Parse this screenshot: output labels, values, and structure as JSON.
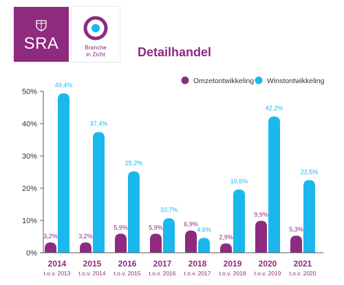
{
  "logo_sra": {
    "text": "SRA"
  },
  "logo_branche": {
    "line1": "Branche",
    "line2": "in Zicht"
  },
  "title": "Detailhandel",
  "colors": {
    "omzet": "#8e2b7f",
    "winst": "#1ab8ec",
    "brand": "#8e2b7f"
  },
  "chart_data": {
    "type": "bar",
    "title": "Detailhandel",
    "categories": [
      "2014",
      "2015",
      "2016",
      "2017",
      "2018",
      "2019",
      "2020",
      "2021"
    ],
    "subcategories": [
      "t.o.v. 2013",
      "t.o.v. 2014",
      "t.o.v. 2015",
      "t.o.v. 2016",
      "t.o.v. 2017",
      "t.o.v. 2018",
      "t.o.v. 2019",
      "t.o.v. 2020"
    ],
    "series": [
      {
        "name": "Omzetontwikkeling",
        "values": [
          3.2,
          3.2,
          5.9,
          5.9,
          6.9,
          2.9,
          9.9,
          5.3
        ],
        "labels": [
          "3,2%",
          "3,2%",
          "5,9%",
          "5,9%",
          "6,9%",
          "2,9%",
          "9,9%",
          "5,3%"
        ]
      },
      {
        "name": "Winstontwikkeling",
        "values": [
          49.4,
          37.4,
          25.2,
          10.7,
          4.6,
          19.6,
          42.2,
          22.5
        ],
        "labels": [
          "49,4%",
          "37,4%",
          "25,2%",
          "10,7%",
          "4,6%",
          "19,6%",
          "42,2%",
          "22,5%"
        ]
      }
    ],
    "yticks": [
      "0%",
      "10%",
      "20%",
      "30%",
      "40%",
      "50%"
    ],
    "ylim": [
      0,
      50
    ],
    "grid": false,
    "legend": "top-right"
  }
}
